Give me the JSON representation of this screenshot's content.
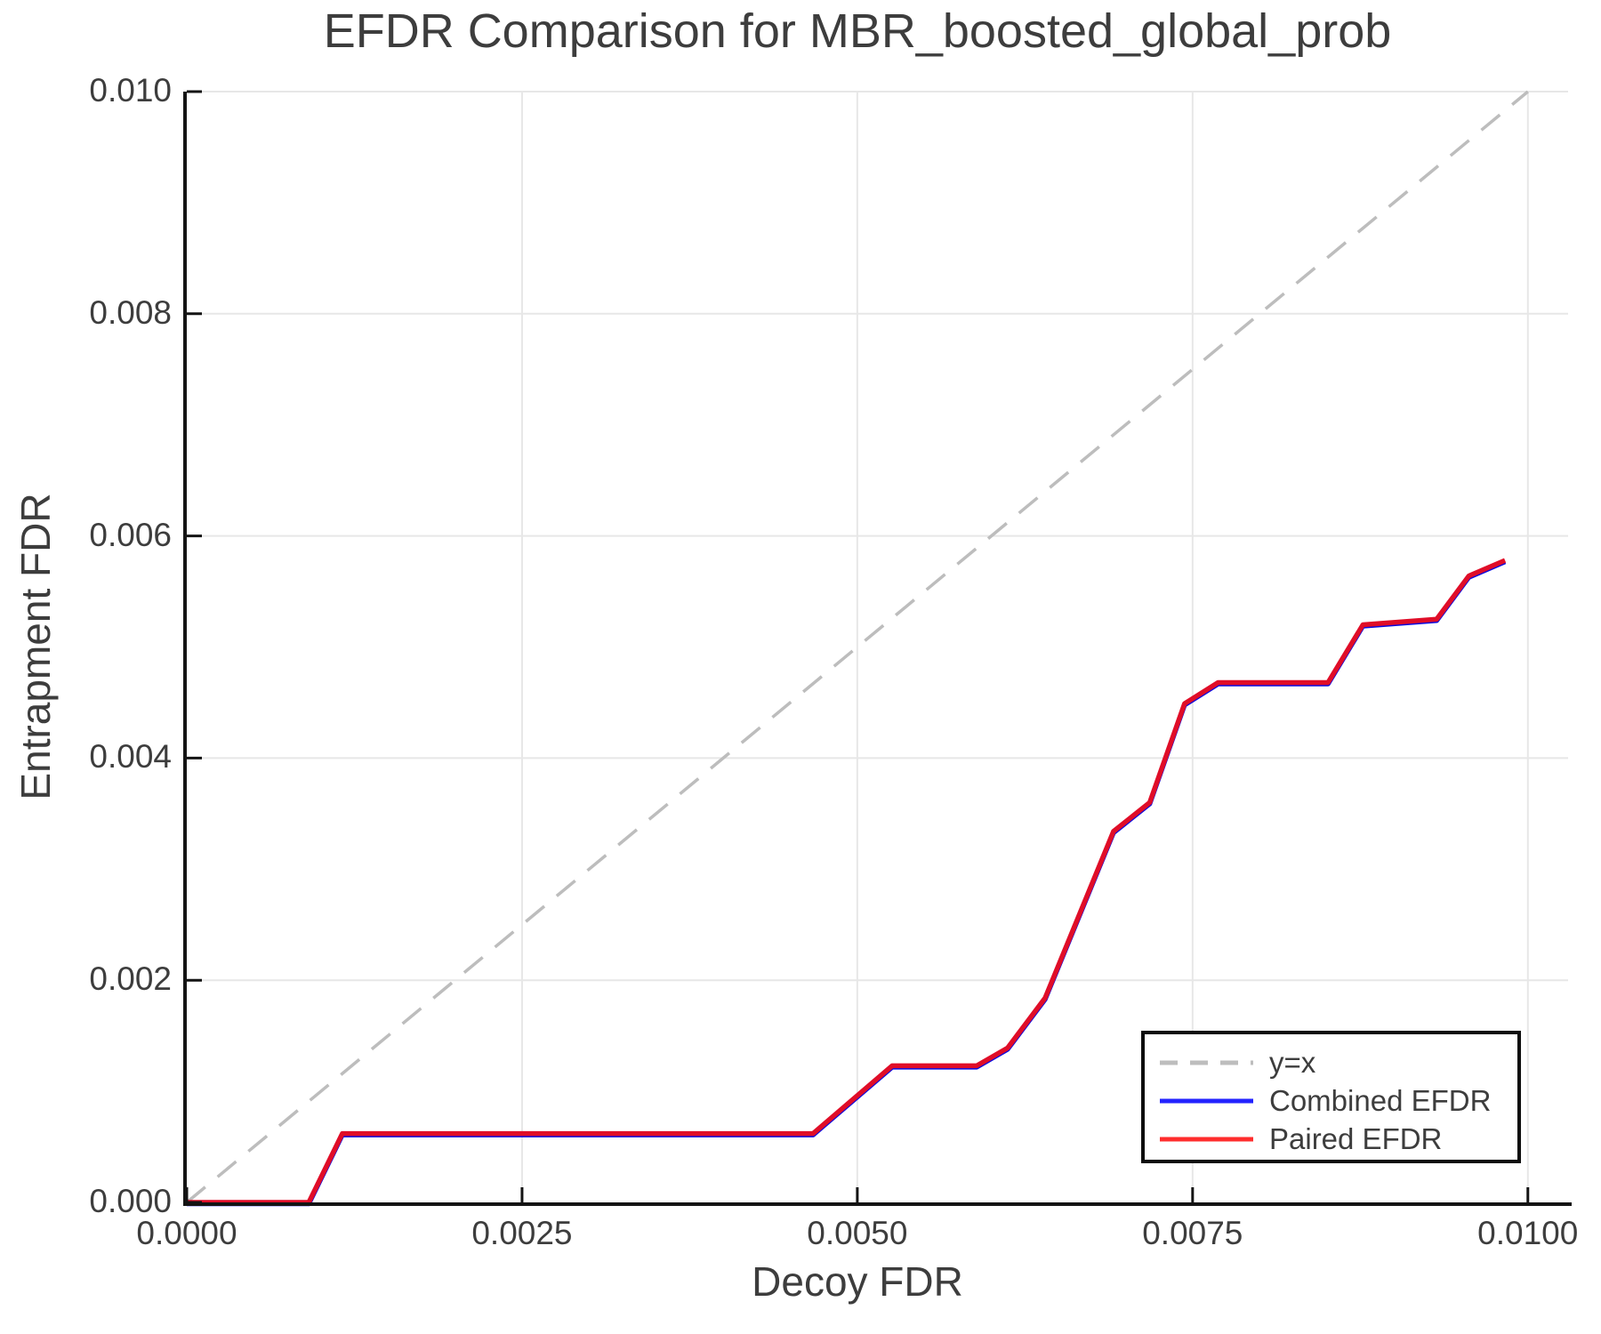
{
  "figure": {
    "title": "EFDR Comparison for MBR_boosted_global_prob",
    "xlabel": "Decoy FDR",
    "ylabel": "Entrapment FDR"
  },
  "colors": {
    "background": "#ffffff",
    "text": "#3d3d3d",
    "grid": "#e7e7e7",
    "spine": "#141414",
    "identity_line": "#bdbdbd",
    "combined_curve": "#0a0ae0",
    "paired_curve": "#e00d28",
    "legend_combined": "#2323ff",
    "legend_paired": "#ff2d2d",
    "legend_border": "#0d0d0d"
  },
  "legend": {
    "items": [
      {
        "label": "y=x",
        "color": "#bdbdbd",
        "dashed": true
      },
      {
        "label": "Combined EFDR",
        "color": "#2323ff",
        "dashed": false
      },
      {
        "label": "Paired EFDR",
        "color": "#ff2d2d",
        "dashed": false
      }
    ]
  },
  "chart_data": {
    "type": "line",
    "title": "EFDR Comparison for MBR_boosted_global_prob",
    "xlabel": "Decoy FDR",
    "ylabel": "Entrapment FDR",
    "xlim": [
      0,
      0.0103
    ],
    "ylim": [
      0,
      0.01
    ],
    "grid": true,
    "legend_position": "lower right",
    "xticks": {
      "values": [
        0,
        0.0025,
        0.005,
        0.0075,
        0.01
      ],
      "labels": [
        "0.0000",
        "0.0025",
        "0.0050",
        "0.0075",
        "0.0100"
      ]
    },
    "yticks": {
      "values": [
        0,
        0.002,
        0.004,
        0.006,
        0.008,
        0.01
      ],
      "labels": [
        "0.000",
        "0.002",
        "0.004",
        "0.006",
        "0.008",
        "0.010"
      ]
    },
    "series": [
      {
        "name": "y=x",
        "style": "dashed",
        "color": "#bdbdbd",
        "points": [
          [
            0,
            0
          ],
          [
            0.01,
            0.01
          ]
        ]
      },
      {
        "name": "Combined EFDR",
        "style": "solid",
        "color": "#0a0ae0",
        "points": [
          [
            0.0,
            0.0
          ],
          [
            0.00091,
            0.0
          ],
          [
            0.00116,
            0.00062
          ],
          [
            0.00467,
            0.00062
          ],
          [
            0.00526,
            0.00123
          ],
          [
            0.00589,
            0.00123
          ],
          [
            0.00612,
            0.00139
          ],
          [
            0.0064,
            0.00184
          ],
          [
            0.00691,
            0.00334
          ],
          [
            0.00718,
            0.0036
          ],
          [
            0.00744,
            0.00449
          ],
          [
            0.00769,
            0.00468
          ],
          [
            0.00851,
            0.00468
          ],
          [
            0.00877,
            0.0052
          ],
          [
            0.00932,
            0.00525
          ],
          [
            0.00956,
            0.00564
          ],
          [
            0.00983,
            0.00578
          ]
        ]
      },
      {
        "name": "Paired EFDR",
        "style": "solid",
        "color": "#e00d28",
        "points": [
          [
            0.0,
            0.0
          ],
          [
            0.00091,
            0.0
          ],
          [
            0.00116,
            0.00062
          ],
          [
            0.00467,
            0.00062
          ],
          [
            0.00526,
            0.00123
          ],
          [
            0.00589,
            0.00123
          ],
          [
            0.00612,
            0.00139
          ],
          [
            0.0064,
            0.00184
          ],
          [
            0.00691,
            0.00334
          ],
          [
            0.00718,
            0.0036
          ],
          [
            0.00744,
            0.00449
          ],
          [
            0.00769,
            0.00468
          ],
          [
            0.00851,
            0.00468
          ],
          [
            0.00877,
            0.0052
          ],
          [
            0.00932,
            0.00525
          ],
          [
            0.00956,
            0.00564
          ],
          [
            0.00983,
            0.00578
          ]
        ]
      }
    ]
  }
}
